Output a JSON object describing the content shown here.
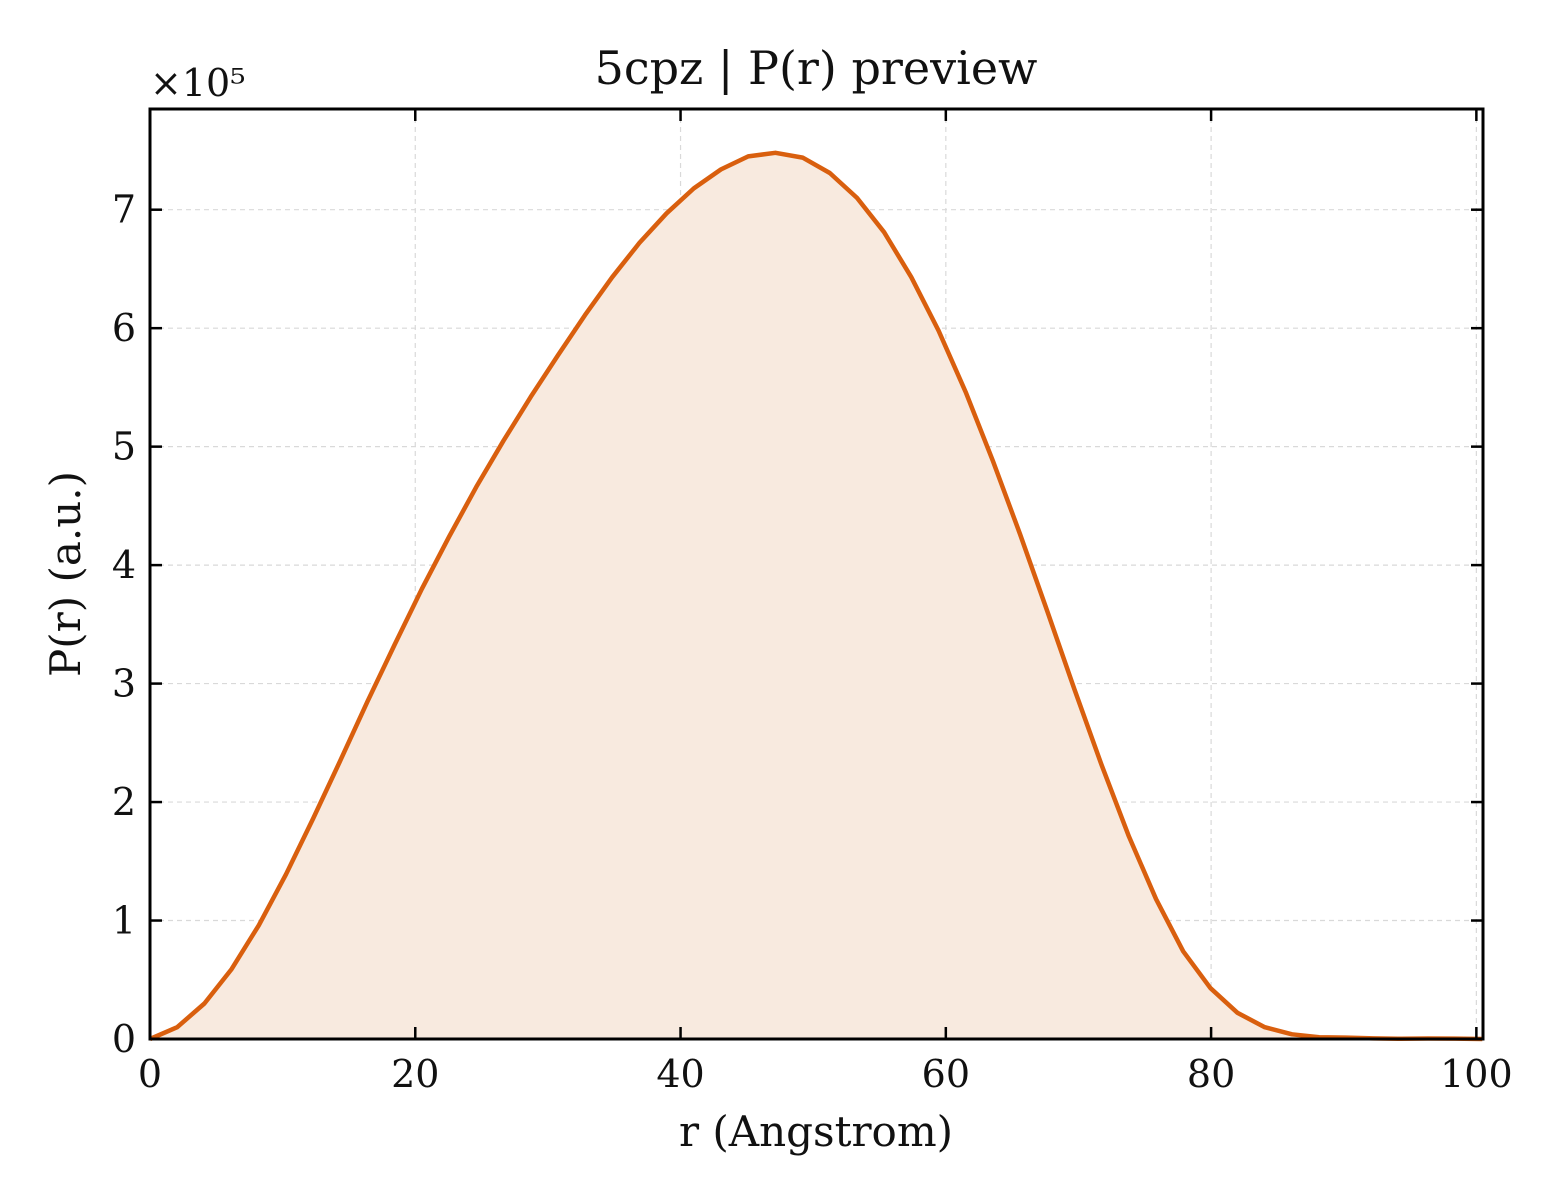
{
  "chart_data": {
    "type": "area",
    "title": "5cpz | P(r) preview",
    "xlabel": "r (Angstrom)",
    "ylabel": "P(r) (a.u.)",
    "y_multiplier_label": "×10⁵",
    "y_scale_factor": 100000,
    "xlim": [
      0,
      100.5
    ],
    "ylim": [
      0,
      785000
    ],
    "x_ticks": [
      0,
      20,
      40,
      60,
      80,
      100
    ],
    "y_ticks": [
      0,
      100000,
      200000,
      300000,
      400000,
      500000,
      600000,
      700000
    ],
    "x_tick_labels": [
      "0",
      "20",
      "40",
      "60",
      "80",
      "100"
    ],
    "y_tick_labels": [
      "0",
      "1",
      "2",
      "3",
      "4",
      "5",
      "6",
      "7"
    ],
    "grid": true,
    "legend": "none",
    "colors": {
      "line": "#d95f0e",
      "fill": "#f8eadf",
      "grid": "#d9d9d9",
      "axis": "#000000"
    },
    "series": [
      {
        "x": [
          0,
          2.05,
          4.1,
          6.15,
          8.2,
          10.25,
          12.3,
          14.35,
          16.4,
          18.45,
          20.5,
          22.55,
          24.6,
          26.65,
          28.7,
          30.75,
          32.8,
          34.85,
          36.9,
          38.95,
          41.0,
          43.05,
          45.1,
          47.15,
          49.2,
          51.25,
          53.3,
          55.35,
          57.4,
          59.45,
          61.5,
          63.55,
          65.6,
          67.65,
          69.7,
          71.75,
          73.8,
          75.85,
          77.9,
          79.95,
          82.0,
          84.05,
          86.1,
          88.15,
          90.2,
          92.25,
          94.3,
          96.35,
          98.4,
          100.45
        ],
        "y": [
          0,
          10000,
          30000,
          59000,
          96000,
          139000,
          186000,
          235000,
          285000,
          333000,
          380000,
          424000,
          466000,
          505000,
          542000,
          577000,
          611000,
          643000,
          672000,
          697000,
          718000,
          734000,
          745000,
          748000,
          744000,
          731000,
          710000,
          681000,
          643000,
          598000,
          546000,
          488000,
          426000,
          361000,
          295000,
          231000,
          171000,
          118000,
          74000,
          43000,
          22000,
          10000,
          4000,
          1500,
          1200,
          500,
          200,
          400,
          300,
          0
        ]
      }
    ]
  }
}
